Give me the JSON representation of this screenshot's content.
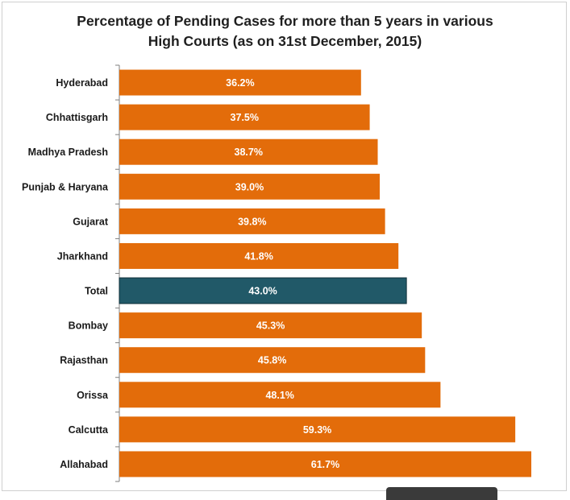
{
  "chart_data": {
    "type": "bar",
    "orientation": "horizontal",
    "title": "Percentage of Pending Cases for more than 5 years in various High Courts (as on 31st December, 2015)",
    "title_lines": [
      "Percentage of Pending Cases for more than 5 years in various",
      "High Courts (as on 31st December, 2015)"
    ],
    "categories": [
      "Hyderabad",
      "Chhattisgarh",
      "Madhya Pradesh",
      "Punjab & Haryana",
      "Gujarat",
      "Jharkhand",
      "Total",
      "Bombay",
      "Rajasthan",
      "Orissa",
      "Calcutta",
      "Allahabad"
    ],
    "values": [
      36.2,
      37.5,
      38.7,
      39.0,
      39.8,
      41.8,
      43.0,
      45.3,
      45.8,
      48.1,
      59.3,
      61.7
    ],
    "data_labels": [
      "36.2%",
      "37.5%",
      "38.7%",
      "39.0%",
      "39.8%",
      "41.8%",
      "43.0%",
      "45.3%",
      "45.8%",
      "48.1%",
      "59.3%",
      "61.7%"
    ],
    "highlight_category": "Total",
    "xlim": [
      0,
      63
    ],
    "grid": false,
    "legend": "none",
    "xlabel": "",
    "ylabel": ""
  },
  "colors": {
    "bar": "#e36c0a",
    "highlight": "#215968",
    "axis": "#7f7f7f",
    "text": "#1a1a1a",
    "value_text": "#ffffff"
  }
}
